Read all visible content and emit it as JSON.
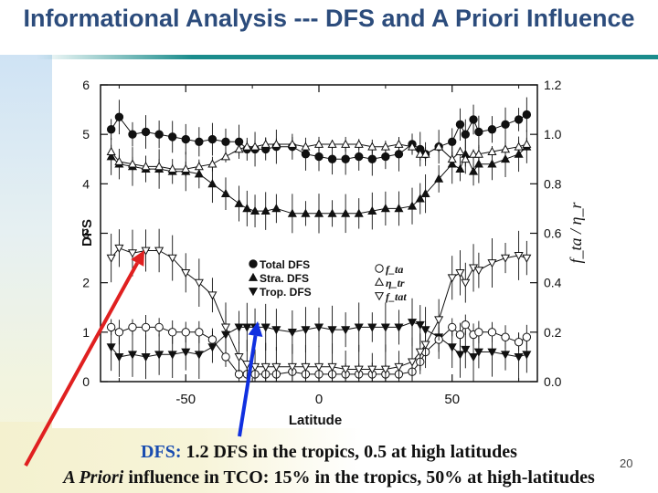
{
  "slide": {
    "title": "Informational Analysis --- DFS and A Priori Influence",
    "caption_line1_label": "DFS:",
    "caption_line1_text": " 1.2 DFS in the tropics, 0.5 at high latitudes",
    "caption_line2_italic": "A Priori",
    "caption_line2_text": " influence in TCO: 15% in the tropics, 50% at high-latitudes",
    "page_number": "20",
    "colors": {
      "title": "#2c4c7c",
      "rule": "#1a8c8c",
      "red_arrow": "#e02020",
      "blue_arrow": "#1030e0",
      "caption_highlight": "#1a4db0"
    }
  },
  "chart_data": {
    "type": "line",
    "xlabel": "Latitude",
    "ylabel": "DFS",
    "y2label": "f_ta / η_r",
    "xlim": [
      -82,
      82
    ],
    "ylim": [
      0,
      6
    ],
    "y2lim": [
      0,
      1.2
    ],
    "xticks": [
      -50,
      0,
      50
    ],
    "xtick_labels": [
      "-50",
      "0",
      "50"
    ],
    "yticks": [
      0,
      1,
      2,
      3,
      4,
      5,
      6
    ],
    "ytick_labels": [
      "0",
      "1",
      "2",
      "3",
      "4",
      "5",
      "6"
    ],
    "y2ticks": [
      0,
      0.2,
      0.4,
      0.6,
      0.8,
      1.0,
      1.2
    ],
    "y2tick_labels": [
      "0.0",
      "0.2",
      "0.4",
      "0.6",
      "0.8",
      "1.0",
      "1.2"
    ],
    "grid": false,
    "legend_left": [
      {
        "marker": "circle-filled",
        "label": "Total DFS"
      },
      {
        "marker": "triangle-filled",
        "label": "Stra. DFS"
      },
      {
        "marker": "triangle-down-filled",
        "label": "Trop. DFS"
      }
    ],
    "legend_right": [
      {
        "marker": "circle-open",
        "label": "f_ta"
      },
      {
        "marker": "triangle-open",
        "label": "η_tr"
      },
      {
        "marker": "triangle-down-open",
        "label": "f_tat"
      }
    ],
    "legend_position": "center",
    "series": [
      {
        "name": "Total DFS",
        "axis": "left",
        "marker": "circle-filled",
        "x": [
          -78,
          -75,
          -70,
          -65,
          -60,
          -55,
          -50,
          -45,
          -40,
          -35,
          -30,
          -27,
          -24,
          -20,
          -16,
          -10,
          -5,
          0,
          5,
          10,
          15,
          20,
          25,
          30,
          35,
          38,
          40,
          45,
          50,
          53,
          55,
          58,
          60,
          65,
          70,
          75,
          78
        ],
        "y": [
          5.1,
          5.35,
          5.0,
          5.05,
          5.0,
          4.95,
          4.9,
          4.85,
          4.9,
          4.85,
          4.85,
          4.7,
          4.7,
          4.7,
          4.75,
          4.75,
          4.6,
          4.55,
          4.5,
          4.5,
          4.55,
          4.5,
          4.55,
          4.6,
          4.8,
          4.7,
          4.6,
          4.75,
          4.85,
          5.2,
          5.0,
          5.3,
          5.05,
          5.1,
          5.2,
          5.3,
          5.4
        ]
      },
      {
        "name": "Stra. DFS",
        "axis": "left",
        "marker": "triangle-filled",
        "x": [
          -78,
          -75,
          -70,
          -65,
          -60,
          -55,
          -50,
          -45,
          -40,
          -35,
          -30,
          -27,
          -24,
          -20,
          -16,
          -10,
          -5,
          0,
          5,
          10,
          15,
          20,
          25,
          30,
          35,
          38,
          40,
          45,
          50,
          53,
          55,
          58,
          60,
          65,
          70,
          75,
          78
        ],
        "y": [
          4.55,
          4.4,
          4.35,
          4.3,
          4.3,
          4.25,
          4.25,
          4.2,
          4.0,
          3.8,
          3.6,
          3.5,
          3.45,
          3.45,
          3.5,
          3.4,
          3.4,
          3.4,
          3.4,
          3.4,
          3.4,
          3.45,
          3.5,
          3.5,
          3.55,
          3.7,
          3.8,
          4.1,
          4.4,
          4.3,
          4.6,
          4.25,
          4.4,
          4.4,
          4.5,
          4.6,
          4.75
        ]
      },
      {
        "name": "Trop. DFS",
        "axis": "left",
        "marker": "triangle-down-filled",
        "x": [
          -78,
          -75,
          -70,
          -65,
          -60,
          -55,
          -50,
          -45,
          -40,
          -35,
          -30,
          -27,
          -24,
          -20,
          -16,
          -10,
          -5,
          0,
          5,
          10,
          15,
          20,
          25,
          30,
          35,
          38,
          40,
          45,
          50,
          53,
          55,
          58,
          60,
          65,
          70,
          75,
          78
        ],
        "y": [
          0.7,
          0.5,
          0.55,
          0.5,
          0.55,
          0.55,
          0.6,
          0.55,
          0.7,
          0.95,
          1.1,
          1.1,
          1.1,
          1.1,
          1.05,
          1.0,
          1.05,
          1.1,
          1.05,
          1.05,
          1.1,
          1.1,
          1.1,
          1.1,
          1.2,
          1.15,
          1.05,
          0.9,
          0.7,
          0.55,
          0.65,
          0.5,
          0.6,
          0.6,
          0.55,
          0.5,
          0.55
        ]
      },
      {
        "name": "f_ta",
        "axis": "right",
        "marker": "circle-open",
        "x": [
          -78,
          -75,
          -70,
          -65,
          -60,
          -55,
          -50,
          -45,
          -40,
          -35,
          -30,
          -27,
          -24,
          -20,
          -16,
          -10,
          -5,
          0,
          5,
          10,
          15,
          20,
          25,
          30,
          35,
          38,
          40,
          45,
          50,
          53,
          55,
          58,
          60,
          65,
          70,
          75,
          78
        ],
        "y": [
          0.22,
          0.2,
          0.22,
          0.22,
          0.22,
          0.2,
          0.2,
          0.2,
          0.17,
          0.1,
          0.03,
          0.03,
          0.03,
          0.03,
          0.03,
          0.04,
          0.03,
          0.03,
          0.03,
          0.03,
          0.03,
          0.03,
          0.03,
          0.03,
          0.04,
          0.08,
          0.12,
          0.17,
          0.22,
          0.19,
          0.23,
          0.19,
          0.2,
          0.2,
          0.18,
          0.16,
          0.18
        ]
      },
      {
        "name": "η_tr",
        "axis": "right",
        "marker": "triangle-open",
        "x": [
          -78,
          -75,
          -70,
          -65,
          -60,
          -55,
          -50,
          -45,
          -40,
          -35,
          -30,
          -27,
          -24,
          -20,
          -16,
          -10,
          -5,
          0,
          5,
          10,
          15,
          20,
          25,
          30,
          35,
          38,
          40,
          45,
          50,
          53,
          55,
          58,
          60,
          65,
          70,
          75,
          78
        ],
        "y": [
          0.93,
          0.89,
          0.88,
          0.87,
          0.87,
          0.86,
          0.86,
          0.87,
          0.88,
          0.91,
          0.94,
          0.95,
          0.95,
          0.96,
          0.96,
          0.96,
          0.95,
          0.96,
          0.96,
          0.96,
          0.96,
          0.95,
          0.95,
          0.96,
          0.95,
          0.92,
          0.92,
          0.95,
          0.9,
          0.93,
          0.9,
          0.92,
          0.92,
          0.93,
          0.94,
          0.95,
          0.96
        ]
      },
      {
        "name": "f_tat",
        "axis": "right",
        "marker": "triangle-down-open",
        "x": [
          -78,
          -75,
          -70,
          -65,
          -60,
          -55,
          -50,
          -45,
          -40,
          -35,
          -30,
          -27,
          -24,
          -20,
          -16,
          -10,
          -5,
          0,
          5,
          10,
          15,
          20,
          25,
          30,
          35,
          38,
          40,
          45,
          50,
          53,
          55,
          58,
          60,
          65,
          70,
          75,
          78
        ],
        "y": [
          0.5,
          0.54,
          0.52,
          0.53,
          0.53,
          0.5,
          0.44,
          0.4,
          0.35,
          0.22,
          0.1,
          0.07,
          0.06,
          0.06,
          0.06,
          0.06,
          0.06,
          0.06,
          0.06,
          0.05,
          0.05,
          0.05,
          0.05,
          0.06,
          0.08,
          0.12,
          0.15,
          0.25,
          0.42,
          0.44,
          0.4,
          0.46,
          0.45,
          0.48,
          0.5,
          0.51,
          0.5
        ]
      }
    ]
  }
}
